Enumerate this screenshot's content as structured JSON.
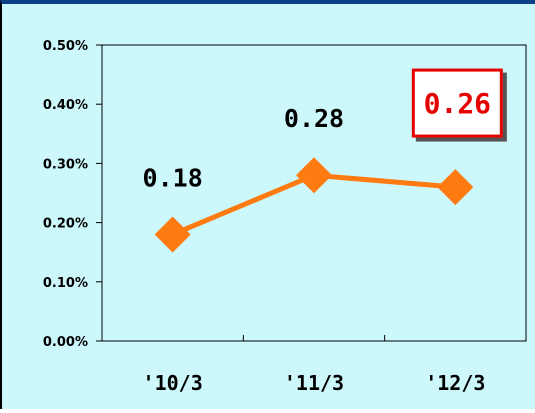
{
  "chart_data": {
    "type": "line",
    "categories": [
      "'10/3",
      "'11/3",
      "'12/3"
    ],
    "values": [
      0.18,
      0.28,
      0.26
    ],
    "data_labels": [
      "0.18",
      "0.28",
      "0.26"
    ],
    "highlighted_index": 2,
    "y_ticks": [
      "0.00%",
      "0.10%",
      "0.20%",
      "0.30%",
      "0.40%",
      "0.50%"
    ],
    "ylim": [
      0,
      0.5
    ],
    "grid": false,
    "colors": {
      "line": "#ff7a10",
      "marker": "#ff7a10",
      "highlight_text": "#e60000",
      "highlight_border": "#e60000",
      "background": "#ccf7fb"
    }
  }
}
